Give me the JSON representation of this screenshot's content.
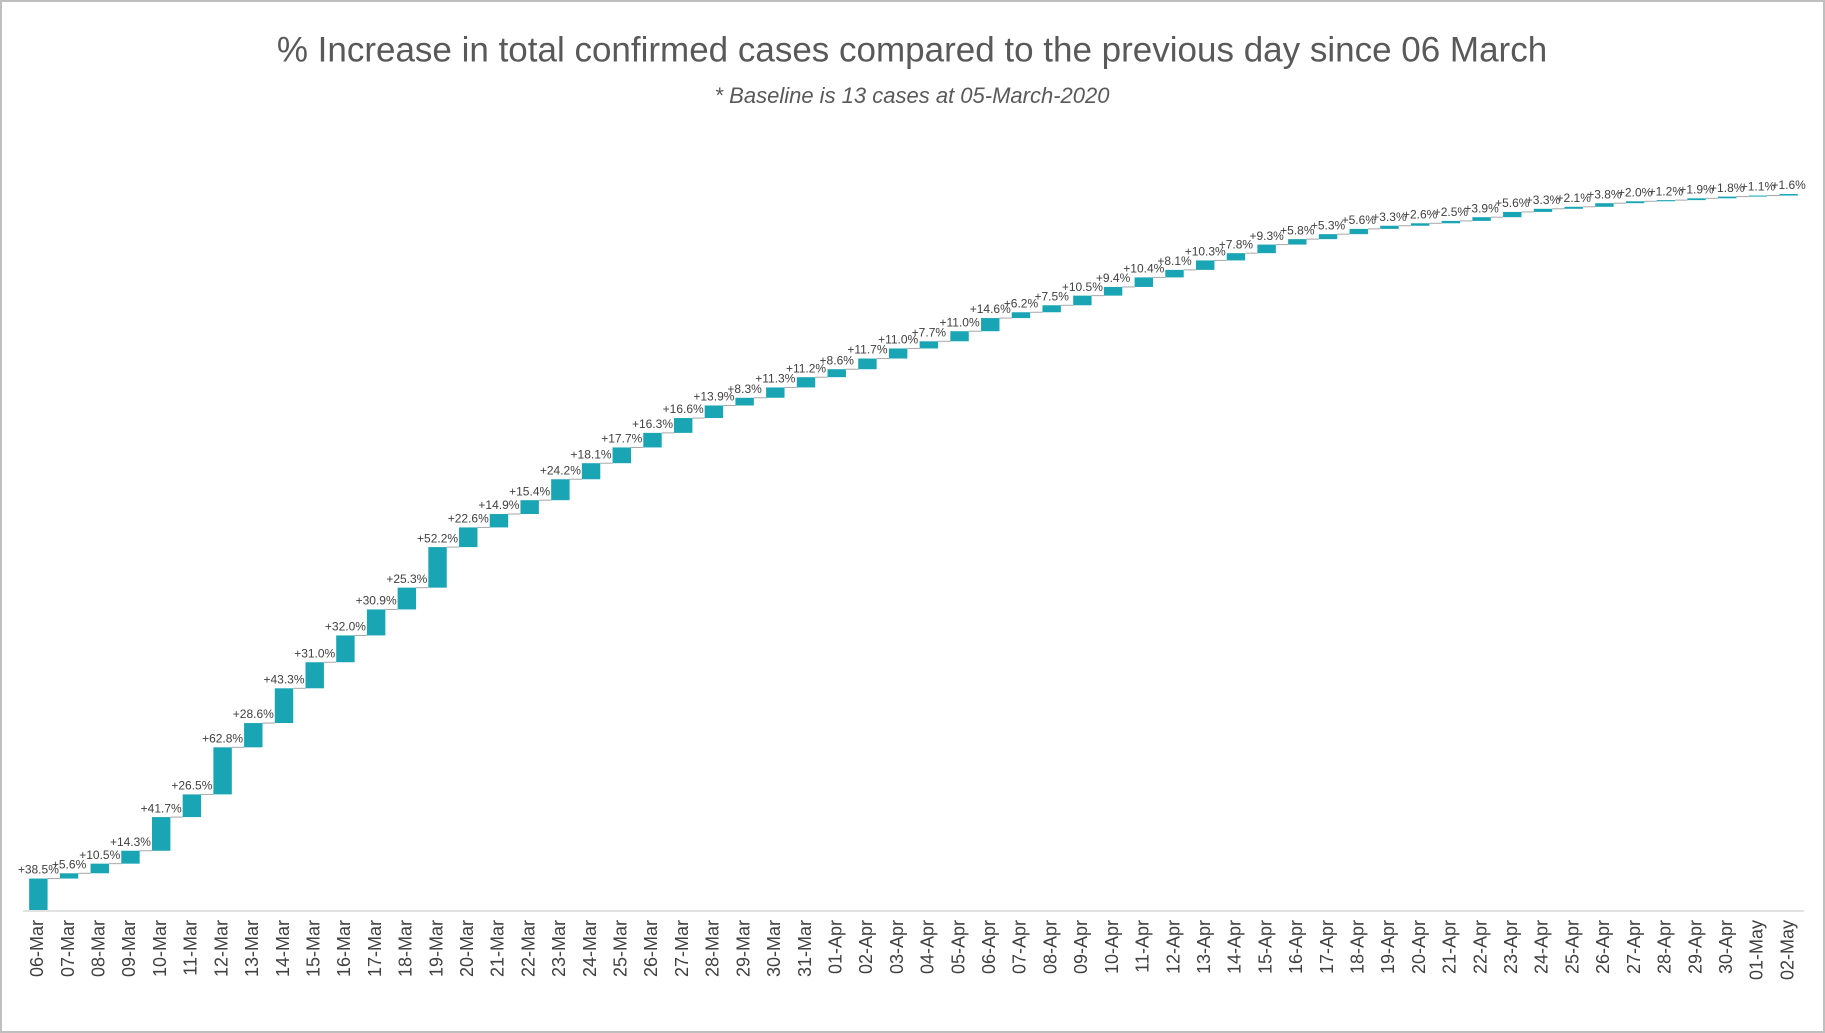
{
  "chart_data": {
    "type": "waterfall",
    "title": "% Increase in total confirmed cases compared to the previous day since 06 March",
    "subtitle": "* Baseline is 13 cases at 05-March-2020",
    "log_scale": true,
    "color": "#1aa5b5",
    "categories": [
      "06-Mar",
      "07-Mar",
      "08-Mar",
      "09-Mar",
      "10-Mar",
      "11-Mar",
      "12-Mar",
      "13-Mar",
      "14-Mar",
      "15-Mar",
      "16-Mar",
      "17-Mar",
      "18-Mar",
      "19-Mar",
      "20-Mar",
      "21-Mar",
      "22-Mar",
      "23-Mar",
      "24-Mar",
      "25-Mar",
      "26-Mar",
      "27-Mar",
      "28-Mar",
      "29-Mar",
      "30-Mar",
      "31-Mar",
      "01-Apr",
      "02-Apr",
      "03-Apr",
      "04-Apr",
      "05-Apr",
      "06-Apr",
      "07-Apr",
      "08-Apr",
      "09-Apr",
      "10-Apr",
      "11-Apr",
      "12-Apr",
      "13-Apr",
      "14-Apr",
      "15-Apr",
      "16-Apr",
      "17-Apr",
      "18-Apr",
      "19-Apr",
      "20-Apr",
      "21-Apr",
      "22-Apr",
      "23-Apr",
      "24-Apr",
      "25-Apr",
      "26-Apr",
      "27-Apr",
      "28-Apr",
      "29-Apr",
      "30-Apr",
      "01-May",
      "02-May"
    ],
    "values": [
      38.5,
      5.6,
      10.5,
      14.3,
      41.7,
      26.5,
      62.8,
      28.6,
      43.3,
      31.0,
      32.0,
      30.9,
      25.3,
      52.2,
      22.6,
      14.9,
      15.4,
      24.2,
      18.1,
      17.7,
      16.3,
      16.6,
      13.9,
      8.3,
      11.3,
      11.2,
      8.6,
      11.7,
      11.0,
      7.7,
      11.0,
      14.6,
      6.2,
      7.5,
      10.5,
      9.4,
      10.4,
      8.1,
      10.3,
      7.8,
      9.3,
      5.8,
      5.3,
      5.6,
      3.3,
      2.6,
      2.5,
      3.9,
      5.6,
      3.3,
      2.1,
      3.8,
      2.0,
      1.2,
      1.9,
      1.8,
      1.1,
      1.6
    ],
    "value_labels": [
      "+38.5%",
      "+5.6%",
      "+10.5%",
      "+14.3%",
      "+41.7%",
      "+26.5%",
      "+62.8%",
      "+28.6%",
      "+43.3%",
      "+31.0%",
      "+32.0%",
      "+30.9%",
      "+25.3%",
      "+52.2%",
      "+22.6%",
      "+14.9%",
      "+15.4%",
      "+24.2%",
      "+18.1%",
      "+17.7%",
      "+16.3%",
      "+16.6%",
      "+13.9%",
      "+8.3%",
      "+11.3%",
      "+11.2%",
      "+8.6%",
      "+11.7%",
      "+11.0%",
      "+7.7%",
      "+11.0%",
      "+14.6%",
      "+6.2%",
      "+7.5%",
      "+10.5%",
      "+9.4%",
      "+10.4%",
      "+8.1%",
      "+10.3%",
      "+7.8%",
      "+9.3%",
      "+5.8%",
      "+5.3%",
      "+5.6%",
      "+3.3%",
      "+2.6%",
      "+2.5%",
      "+3.9%",
      "+5.6%",
      "+3.3%",
      "+2.1%",
      "+3.8%",
      "+2.0%",
      "+1.2%",
      "+1.9%",
      "+1.8%",
      "+1.1%",
      "+1.6%"
    ]
  }
}
